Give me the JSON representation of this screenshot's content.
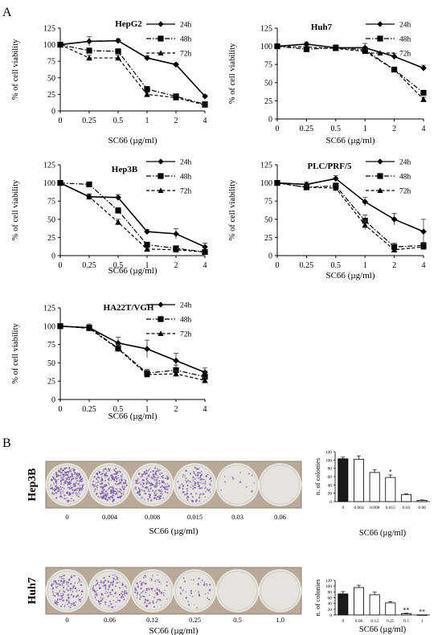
{
  "panel_labels": {
    "a": "A",
    "b": "B"
  },
  "legend_labels": [
    "24h",
    "48h",
    "72h"
  ],
  "x_ticks": [
    "0",
    "0.25",
    "0.5",
    "1",
    "2",
    "4"
  ],
  "shared_xlabel": "SC66 (µg/ml)",
  "shared_ylabel": "% of cell viability",
  "colony_ylabel": "n. of colonies",
  "sig_labels": {
    "one": "*",
    "two": "**"
  },
  "colors": {
    "dark": "#000000",
    "bar_fill_first": "#1a1a1a",
    "well_stain": "#7a5aa8",
    "plate": "#b8aa9a"
  },
  "colony_plates": [
    {
      "cell_line": "Hep3B",
      "doses": [
        "0",
        "0.004",
        "0.008",
        "0.015",
        "0.03",
        "0.06"
      ],
      "density": [
        1.0,
        0.95,
        0.8,
        0.5,
        0.05,
        0.0
      ]
    },
    {
      "cell_line": "Huh7",
      "doses": [
        "0",
        "0.06",
        "0.12",
        "0.25",
        "0.5",
        "1.0"
      ],
      "density": [
        0.55,
        0.5,
        0.35,
        0.15,
        0.0,
        0.0
      ]
    }
  ],
  "chart_data": [
    {
      "type": "line",
      "title": "HepG2",
      "categories": [
        "0",
        "0.25",
        "0.5",
        "1",
        "2",
        "4"
      ],
      "xlabel": "SC66 (µg/ml)",
      "ylabel": "% of cell viability",
      "ylim": [
        0,
        125
      ],
      "yticks": [
        0,
        25,
        50,
        75,
        100,
        125
      ],
      "series": [
        {
          "name": "24h",
          "marker": "diamond",
          "dash": "solid",
          "values": [
            100,
            105,
            106,
            80,
            70,
            22
          ],
          "err": [
            0,
            7,
            3,
            3,
            2,
            2
          ]
        },
        {
          "name": "48h",
          "marker": "square",
          "dash": "dashdot",
          "values": [
            100,
            91,
            90,
            33,
            22,
            10
          ],
          "err": [
            0,
            4,
            3,
            3,
            3,
            2
          ]
        },
        {
          "name": "72h",
          "marker": "triangle",
          "dash": "dashed",
          "values": [
            100,
            80,
            80,
            25,
            20,
            9
          ],
          "err": [
            0,
            4,
            4,
            3,
            3,
            2
          ]
        }
      ]
    },
    {
      "type": "line",
      "title": "Huh7",
      "categories": [
        "0",
        "0.25",
        "0.5",
        "1",
        "2",
        "4"
      ],
      "xlabel": "SC66 (µg/ml)",
      "ylabel": "% of cell viability",
      "ylim": [
        0,
        125
      ],
      "yticks": [
        0,
        25,
        50,
        75,
        100,
        125
      ],
      "series": [
        {
          "name": "24h",
          "marker": "diamond",
          "dash": "solid",
          "values": [
            100,
            103,
            98,
            98,
            86,
            70
          ],
          "err": [
            0,
            3,
            4,
            6,
            4,
            4
          ]
        },
        {
          "name": "48h",
          "marker": "square",
          "dash": "dashdot",
          "values": [
            100,
            96,
            98,
            95,
            68,
            36
          ],
          "err": [
            0,
            2,
            3,
            3,
            3,
            3
          ]
        },
        {
          "name": "72h",
          "marker": "triangle",
          "dash": "dashed",
          "values": [
            100,
            99,
            97,
            93,
            68,
            27
          ],
          "err": [
            0,
            2,
            3,
            3,
            3,
            3
          ]
        }
      ]
    },
    {
      "type": "line",
      "title": "Hep3B",
      "categories": [
        "0",
        "0.25",
        "0.5",
        "1",
        "2",
        "4"
      ],
      "xlabel": "SC66 (µg/ml)",
      "ylabel": "% of cell viability",
      "ylim": [
        0,
        125
      ],
      "yticks": [
        0,
        25,
        50,
        75,
        100,
        125
      ],
      "series": [
        {
          "name": "24h",
          "marker": "diamond",
          "dash": "solid",
          "values": [
            100,
            81,
            80,
            33,
            30,
            12
          ],
          "err": [
            0,
            4,
            4,
            3,
            7,
            5
          ]
        },
        {
          "name": "48h",
          "marker": "square",
          "dash": "dashdot",
          "values": [
            100,
            98,
            62,
            15,
            10,
            5
          ],
          "err": [
            0,
            3,
            4,
            3,
            3,
            3
          ]
        },
        {
          "name": "72h",
          "marker": "triangle",
          "dash": "dashed",
          "values": [
            100,
            81,
            46,
            9,
            8,
            5
          ],
          "err": [
            0,
            3,
            4,
            2,
            2,
            2
          ]
        }
      ]
    },
    {
      "type": "line",
      "title": "PLC/PRF/5",
      "categories": [
        "0",
        "0.25",
        "0.5",
        "1",
        "2",
        "4"
      ],
      "xlabel": "SC66 (µg/ml)",
      "ylabel": "% of cell viability",
      "ylim": [
        0,
        125
      ],
      "yticks": [
        0,
        25,
        50,
        75,
        100,
        125
      ],
      "series": [
        {
          "name": "24h",
          "marker": "diamond",
          "dash": "solid",
          "values": [
            100,
            98,
            106,
            74,
            50,
            33
          ],
          "err": [
            0,
            3,
            4,
            6,
            8,
            17
          ]
        },
        {
          "name": "48h",
          "marker": "square",
          "dash": "dashdot",
          "values": [
            100,
            94,
            96,
            48,
            12,
            14
          ],
          "err": [
            0,
            3,
            4,
            8,
            5,
            4
          ]
        },
        {
          "name": "72h",
          "marker": "triangle",
          "dash": "dashed",
          "values": [
            100,
            94,
            93,
            42,
            8,
            12
          ],
          "err": [
            0,
            3,
            4,
            6,
            3,
            4
          ]
        }
      ]
    },
    {
      "type": "line",
      "title": "HA22T/VGH",
      "categories": [
        "0",
        "0.25",
        "0.5",
        "1",
        "2",
        "4"
      ],
      "xlabel": "SC66 (µg/ml)",
      "ylabel": "% of cell viability",
      "ylim": [
        0,
        125
      ],
      "yticks": [
        0,
        25,
        50,
        75,
        100,
        125
      ],
      "series": [
        {
          "name": "24h",
          "marker": "diamond",
          "dash": "solid",
          "values": [
            100,
            98,
            77,
            69,
            53,
            37
          ],
          "err": [
            0,
            5,
            8,
            12,
            10,
            6
          ]
        },
        {
          "name": "48h",
          "marker": "square",
          "dash": "dashdot",
          "values": [
            100,
            98,
            70,
            36,
            40,
            31
          ],
          "err": [
            0,
            3,
            5,
            5,
            7,
            8
          ]
        },
        {
          "name": "72h",
          "marker": "triangle",
          "dash": "dashed",
          "values": [
            100,
            97,
            69,
            34,
            35,
            26
          ],
          "err": [
            0,
            3,
            4,
            4,
            4,
            4
          ]
        }
      ]
    },
    {
      "type": "bar",
      "title": "",
      "categories": [
        "0",
        "0.004",
        "0.008",
        "0.015",
        "0.03",
        "0.06"
      ],
      "xlabel": "SC66 (µg/ml)",
      "ylabel": "n. of colonies",
      "ylim": [
        0,
        120
      ],
      "yticks": [
        0,
        20,
        40,
        60,
        80,
        100,
        120
      ],
      "values": [
        103,
        102,
        70,
        58,
        17,
        3
      ],
      "err": [
        4,
        8,
        7,
        6,
        2,
        1
      ],
      "sig": [
        "",
        "",
        "",
        "*",
        "",
        ""
      ]
    },
    {
      "type": "bar",
      "title": "",
      "categories": [
        "0",
        "0.06",
        "0.12",
        "0.25",
        "0.5",
        "1"
      ],
      "xlabel": "SC66 (µg/ml)",
      "ylabel": "n. of colonies",
      "ylim": [
        0,
        120
      ],
      "yticks": [
        0,
        20,
        40,
        60,
        80,
        100,
        120
      ],
      "values": [
        73,
        95,
        70,
        42,
        4,
        0
      ],
      "err": [
        8,
        8,
        9,
        4,
        2,
        0
      ],
      "sig": [
        "",
        "",
        "",
        "",
        "**",
        "**"
      ]
    }
  ]
}
